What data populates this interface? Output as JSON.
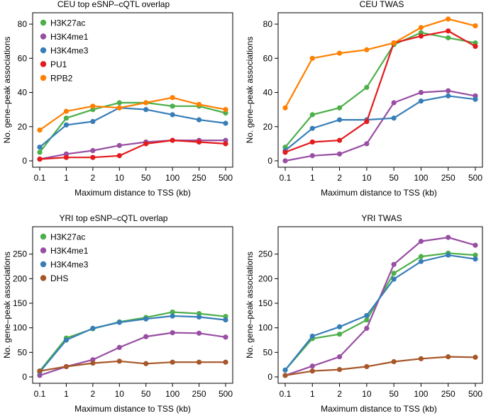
{
  "colors": {
    "H3K27ac": "#4daf4a",
    "H3K4me1": "#984ea3",
    "H3K4me3": "#377eb8",
    "PU1": "#e41a1c",
    "RPB2": "#ff7f00",
    "DHS": "#a65628"
  },
  "chart_data": [
    {
      "type": "line",
      "title": "CEU top eSNP–cQTL overlap",
      "xlabel": "Maximum distance to TSS (kb)",
      "ylabel": "No. gene–peak associations",
      "categories": [
        "0.1",
        "1",
        "2",
        "10",
        "50",
        "100",
        "250",
        "500"
      ],
      "ylim": [
        0,
        85
      ],
      "yticks": [
        0,
        20,
        40,
        60,
        80
      ],
      "legend": "top-left",
      "series": [
        {
          "name": "H3K27ac",
          "values": [
            5,
            25,
            30,
            34,
            34,
            32,
            32,
            28
          ]
        },
        {
          "name": "H3K4me1",
          "values": [
            1,
            4,
            6,
            9,
            11,
            12,
            12,
            12
          ]
        },
        {
          "name": "H3K4me3",
          "values": [
            8,
            21,
            23,
            31,
            30,
            27,
            24,
            22
          ]
        },
        {
          "name": "PU1",
          "values": [
            1,
            2,
            2,
            3,
            10,
            12,
            11,
            10
          ]
        },
        {
          "name": "RPB2",
          "values": [
            18,
            29,
            32,
            31,
            34,
            37,
            33,
            30
          ]
        }
      ]
    },
    {
      "type": "line",
      "title": "CEU TWAS",
      "xlabel": "Maximum distance to TSS (kb)",
      "ylabel": "No. gene–peak associations",
      "categories": [
        "0.1",
        "1",
        "2",
        "10",
        "50",
        "100",
        "250",
        "500"
      ],
      "ylim": [
        0,
        85
      ],
      "yticks": [
        0,
        20,
        40,
        60,
        80
      ],
      "legend": "none",
      "series": [
        {
          "name": "H3K27ac",
          "values": [
            8,
            27,
            31,
            43,
            68,
            75,
            72,
            69
          ]
        },
        {
          "name": "H3K4me1",
          "values": [
            0,
            3,
            4,
            10,
            34,
            40,
            41,
            38
          ]
        },
        {
          "name": "H3K4me3",
          "values": [
            6,
            19,
            24,
            24,
            25,
            35,
            38,
            36
          ]
        },
        {
          "name": "PU1",
          "values": [
            5,
            11,
            12,
            23,
            69,
            73,
            76,
            67
          ]
        },
        {
          "name": "RPB2",
          "values": [
            31,
            60,
            63,
            65,
            69,
            78,
            83,
            79
          ]
        }
      ]
    },
    {
      "type": "line",
      "title": "YRI top eSNP–cQTL overlap",
      "xlabel": "Maximum distance to TSS (kb)",
      "ylabel": "No. gene–peak associations",
      "categories": [
        "0.1",
        "1",
        "2",
        "10",
        "50",
        "100",
        "250",
        "500"
      ],
      "ylim": [
        0,
        300
      ],
      "yticks": [
        0,
        50,
        100,
        150,
        200,
        250
      ],
      "legend": "top-left",
      "series": [
        {
          "name": "H3K27ac",
          "values": [
            12,
            79,
            98,
            112,
            121,
            132,
            129,
            123
          ]
        },
        {
          "name": "H3K4me1",
          "values": [
            3,
            21,
            35,
            60,
            82,
            90,
            89,
            81
          ]
        },
        {
          "name": "H3K4me3",
          "values": [
            10,
            75,
            99,
            111,
            118,
            124,
            122,
            116
          ]
        },
        {
          "name": "DHS",
          "values": [
            12,
            21,
            28,
            32,
            27,
            30,
            30,
            30
          ]
        }
      ]
    },
    {
      "type": "line",
      "title": "YRI TWAS",
      "xlabel": "Maximum distance to TSS (kb)",
      "ylabel": "No. gene–peak associations",
      "categories": [
        "0.1",
        "1",
        "2",
        "10",
        "50",
        "100",
        "250",
        "500"
      ],
      "ylim": [
        0,
        300
      ],
      "yticks": [
        0,
        50,
        100,
        150,
        200,
        250
      ],
      "legend": "none",
      "series": [
        {
          "name": "H3K27ac",
          "values": [
            14,
            78,
            87,
            116,
            211,
            245,
            252,
            248
          ]
        },
        {
          "name": "H3K4me1",
          "values": [
            3,
            22,
            41,
            99,
            229,
            276,
            284,
            268
          ]
        },
        {
          "name": "H3K4me3",
          "values": [
            14,
            83,
            102,
            125,
            199,
            235,
            248,
            240
          ]
        },
        {
          "name": "DHS",
          "values": [
            3,
            12,
            15,
            21,
            31,
            37,
            41,
            40
          ]
        }
      ]
    }
  ]
}
